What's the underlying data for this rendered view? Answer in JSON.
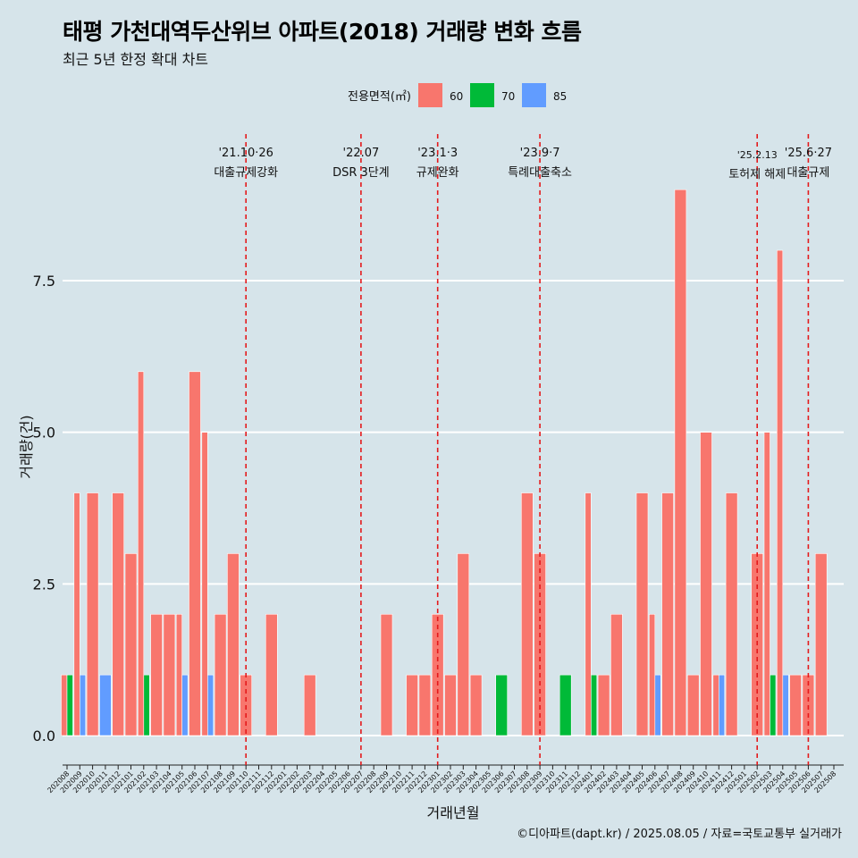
{
  "title": "태평 가천대역두산위브 아파트(2018) 거래량 변화 흐름",
  "subtitle": "최근 5년 한정 확대 차트",
  "caption": "©디아파트(dapt.kr) / 2025.08.05 / 자료=국토교통부 실거래가",
  "colors": {
    "background": "#d6e4ea",
    "60": "#f8766d",
    "70": "#00ba38",
    "85": "#619cff",
    "vline": "#e41a1c",
    "grid": "#ffffff"
  },
  "chart_data": {
    "type": "bar",
    "xlabel": "거래년월",
    "ylabel": "거래량(건)",
    "ylim": [
      0,
      9.5
    ],
    "yticks": [
      0.0,
      2.5,
      5.0,
      7.5
    ],
    "ytick_labels": [
      "0.0",
      "2.5",
      "5.0",
      "7.5"
    ],
    "grid": true,
    "legend": {
      "title": "전용면적(㎡)",
      "position": "top",
      "entries": [
        "60",
        "70",
        "85"
      ]
    },
    "categories": [
      "202008",
      "202009",
      "202010",
      "202011",
      "202012",
      "202101",
      "202102",
      "202103",
      "202104",
      "202105",
      "202106",
      "202107",
      "202108",
      "202109",
      "202110",
      "202111",
      "202112",
      "202201",
      "202202",
      "202203",
      "202204",
      "202205",
      "202206",
      "202207",
      "202208",
      "202209",
      "202210",
      "202211",
      "202212",
      "202301",
      "202302",
      "202303",
      "202304",
      "202305",
      "202306",
      "202307",
      "202308",
      "202309",
      "202310",
      "202311",
      "202312",
      "202401",
      "202402",
      "202403",
      "202404",
      "202405",
      "202406",
      "202407",
      "202408",
      "202409",
      "202410",
      "202411",
      "202412",
      "202501",
      "202502",
      "202503",
      "202504",
      "202505",
      "202506",
      "202507",
      "202508"
    ],
    "bars": [
      {
        "month": "202008",
        "values": {
          "60": 1,
          "70": 1
        }
      },
      {
        "month": "202009",
        "values": {
          "60": 4,
          "85": 1
        }
      },
      {
        "month": "202010",
        "values": {
          "60": 4
        }
      },
      {
        "month": "202011",
        "values": {
          "85": 1
        }
      },
      {
        "month": "202012",
        "values": {
          "60": 4
        }
      },
      {
        "month": "202101",
        "values": {
          "60": 3
        }
      },
      {
        "month": "202102",
        "values": {
          "60": 6,
          "70": 1
        }
      },
      {
        "month": "202103",
        "values": {
          "60": 2
        }
      },
      {
        "month": "202104",
        "values": {
          "60": 2
        }
      },
      {
        "month": "202105",
        "values": {
          "60": 2,
          "85": 1
        }
      },
      {
        "month": "202106",
        "values": {
          "60": 6
        }
      },
      {
        "month": "202107",
        "values": {
          "60": 5,
          "85": 1
        }
      },
      {
        "month": "202108",
        "values": {
          "60": 2
        }
      },
      {
        "month": "202109",
        "values": {
          "60": 3
        }
      },
      {
        "month": "202110",
        "values": {
          "60": 1
        }
      },
      {
        "month": "202112",
        "values": {
          "60": 2
        }
      },
      {
        "month": "202203",
        "values": {
          "60": 1
        }
      },
      {
        "month": "202209",
        "values": {
          "60": 2
        }
      },
      {
        "month": "202211",
        "values": {
          "60": 1
        }
      },
      {
        "month": "202212",
        "values": {
          "60": 1
        }
      },
      {
        "month": "202301",
        "values": {
          "60": 2
        }
      },
      {
        "month": "202302",
        "values": {
          "60": 1
        }
      },
      {
        "month": "202303",
        "values": {
          "60": 3
        }
      },
      {
        "month": "202304",
        "values": {
          "60": 1
        }
      },
      {
        "month": "202306",
        "values": {
          "70": 1
        }
      },
      {
        "month": "202308",
        "values": {
          "60": 4
        }
      },
      {
        "month": "202309",
        "values": {
          "60": 3
        }
      },
      {
        "month": "202311",
        "values": {
          "70": 1
        }
      },
      {
        "month": "202401",
        "values": {
          "60": 4,
          "70": 1
        }
      },
      {
        "month": "202402",
        "values": {
          "60": 1
        }
      },
      {
        "month": "202403",
        "values": {
          "60": 2
        }
      },
      {
        "month": "202405",
        "values": {
          "60": 4
        }
      },
      {
        "month": "202406",
        "values": {
          "60": 2,
          "85": 1
        }
      },
      {
        "month": "202407",
        "values": {
          "60": 4
        }
      },
      {
        "month": "202408",
        "values": {
          "60": 9
        }
      },
      {
        "month": "202409",
        "values": {
          "60": 1
        }
      },
      {
        "month": "202410",
        "values": {
          "60": 5
        }
      },
      {
        "month": "202411",
        "values": {
          "60": 1,
          "85": 1
        }
      },
      {
        "month": "202412",
        "values": {
          "60": 4
        }
      },
      {
        "month": "202502",
        "values": {
          "60": 3
        }
      },
      {
        "month": "202503",
        "values": {
          "60": 5,
          "70": 1
        }
      },
      {
        "month": "202504",
        "values": {
          "60": 8,
          "85": 1
        }
      },
      {
        "month": "202505",
        "values": {
          "60": 1
        }
      },
      {
        "month": "202506",
        "values": {
          "60": 1
        }
      },
      {
        "month": "202507",
        "values": {
          "60": 3
        }
      }
    ],
    "annotations": [
      {
        "position": "202110",
        "line1": "'21.10·26",
        "line2": "대출규제강화",
        "row": 0
      },
      {
        "position": "202207",
        "line1": "'22.07",
        "line2": "DSR 3단계",
        "row": 0
      },
      {
        "position": "202301",
        "line1": "'23.1·3",
        "line2": "규제완화",
        "row": 0
      },
      {
        "position": "202309",
        "line1": "'23.9·7",
        "line2": "특례대출축소",
        "row": 0
      },
      {
        "position": "202502",
        "line1": "'25.2.13",
        "line2": "토허제 해제",
        "row": 1
      },
      {
        "position": "202506",
        "line1": "'25.6·27",
        "line2": "대출규제",
        "row": 0
      }
    ]
  }
}
